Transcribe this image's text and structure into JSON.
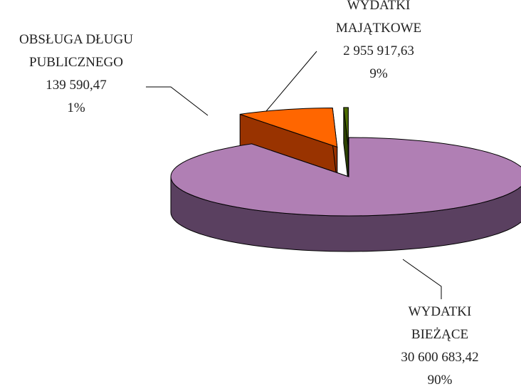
{
  "chart_data": {
    "type": "pie3d",
    "categories": [
      "WYDATKI BIEŻĄCE",
      "WYDATKI MAJĄTKOWE",
      "OBSŁUGA DŁUGU PUBLICZNEGO"
    ],
    "values": [
      30600683.42,
      2955917.63,
      139590.47
    ],
    "value_labels": [
      "30 600 683,42",
      "2 955 917,63",
      "139 590,47"
    ],
    "percent_labels": [
      "90%",
      "9%",
      "1%"
    ],
    "colors": [
      "#b07fb4",
      "#ff6600",
      "#4d6b00"
    ],
    "side_colors": [
      "#5a4060",
      "#993300",
      "#2d4200"
    ]
  }
}
